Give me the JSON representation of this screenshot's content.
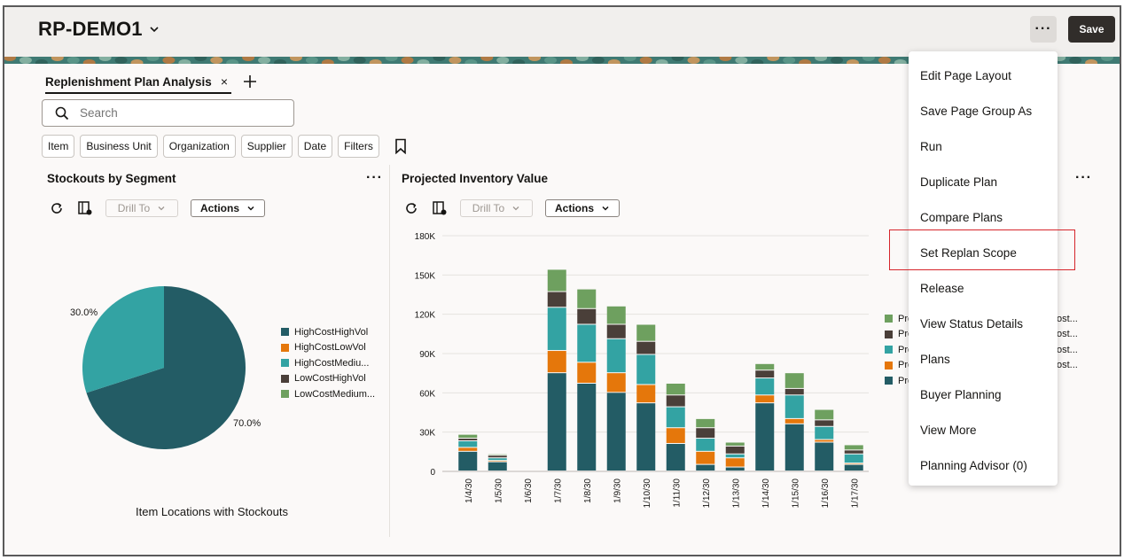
{
  "header": {
    "title": "RP-DEMO1",
    "more_label": "···",
    "save_label": "Save"
  },
  "tabs": [
    {
      "label": "Replenishment Plan Analysis",
      "close": "×"
    }
  ],
  "search": {
    "placeholder": "Search"
  },
  "filter_chips": [
    "Item",
    "Business Unit",
    "Organization",
    "Supplier",
    "Date",
    "Filters"
  ],
  "toolbar": {
    "drill_label": "Drill To",
    "actions_label": "Actions",
    "more_label": "···"
  },
  "stockouts_panel": {
    "title": "Stockouts by Segment",
    "footer": "Item Locations with Stockouts",
    "legend": [
      "HighCostHighVol",
      "HighCostLowVol",
      "HighCostMediu...",
      "LowCostHighVol",
      "LowCostMedium..."
    ]
  },
  "inventory_panel": {
    "title": "Projected Inventory Value",
    "legend_partial": [
      {
        "left": "Pro",
        "right": "ost..."
      },
      {
        "left": "Pro",
        "right": "ost..."
      },
      {
        "left": "Pro",
        "right": "ost..."
      },
      {
        "left": "Pro",
        "right": "ost..."
      },
      {
        "left": "Pro",
        "right": ""
      }
    ]
  },
  "colors": {
    "HighCostHighVol": "#235c65",
    "HighCostLowVol": "#e5770b",
    "HighCostMedium": "#33a3a3",
    "LowCostHighVol": "#4a3f39",
    "LowCostMedium": "#6ea05f"
  },
  "chart_data": [
    {
      "type": "pie",
      "labels": [
        "HighCostHighVol",
        "HighCostMediu..."
      ],
      "values": [
        70.0,
        30.0
      ],
      "data_labels": [
        "70.0%",
        "30.0%"
      ]
    },
    {
      "type": "bar",
      "stacked": true,
      "categories": [
        "1/4/30",
        "1/5/30",
        "1/6/30",
        "1/7/30",
        "1/8/30",
        "1/9/30",
        "1/10/30",
        "1/11/30",
        "1/12/30",
        "1/13/30",
        "1/14/30",
        "1/15/30",
        "1/16/30",
        "1/17/30"
      ],
      "ylim": [
        0,
        180000
      ],
      "yticks": [
        "0",
        "30K",
        "60K",
        "90K",
        "120K",
        "150K",
        "180K"
      ],
      "series": [
        {
          "key": "HighCostHighVol",
          "values": [
            15000,
            7000,
            0,
            75000,
            67000,
            60000,
            52000,
            21000,
            5000,
            3000,
            52000,
            36000,
            22000,
            5000
          ]
        },
        {
          "key": "HighCostLowVol",
          "values": [
            3000,
            1000,
            0,
            17000,
            16000,
            15000,
            14000,
            12000,
            10000,
            7000,
            6000,
            4000,
            2000,
            1000
          ]
        },
        {
          "key": "HighCostMedium",
          "values": [
            5000,
            2000,
            0,
            33000,
            29000,
            26000,
            23000,
            16000,
            10000,
            3000,
            13000,
            18000,
            10000,
            7000
          ]
        },
        {
          "key": "LowCostHighVol",
          "values": [
            2000,
            2000,
            0,
            12000,
            12000,
            11000,
            10000,
            9000,
            8000,
            6000,
            6000,
            5000,
            5000,
            3000
          ]
        },
        {
          "key": "LowCostMedium",
          "values": [
            3000,
            1000,
            0,
            17000,
            15000,
            14000,
            13000,
            9000,
            7000,
            3000,
            5000,
            12000,
            8000,
            4000
          ]
        }
      ]
    }
  ],
  "menu": {
    "items": [
      "Edit Page Layout",
      "Save Page Group As",
      "Run",
      "Duplicate Plan",
      "Compare Plans",
      "Set Replan Scope",
      "Release",
      "View Status Details",
      "Plans",
      "Buyer Planning",
      "View More",
      "Planning Advisor (0)"
    ]
  }
}
